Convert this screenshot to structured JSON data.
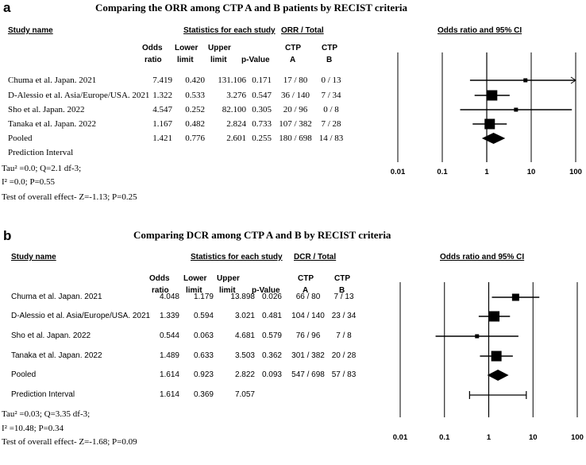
{
  "chart_data": [
    {
      "type": "forest",
      "panel": "a",
      "title": "Comparing the ORR among CTP A and B patients by RECIST criteria",
      "headers": {
        "study": "Study name",
        "stats_group": "Statistics for each study",
        "group_total": "ORR / Total",
        "plot_title": "Odds ratio and 95% CI",
        "odds": [
          "Odds",
          "ratio"
        ],
        "lower": [
          "Lower",
          "limit"
        ],
        "upper": [
          "Upper",
          "limit"
        ],
        "pvalue": "p-Value",
        "ctpa": [
          "CTP",
          "A"
        ],
        "ctpb": [
          "CTP",
          "B"
        ]
      },
      "x_scale": "log",
      "xlim": [
        0.01,
        100
      ],
      "x_ticks": [
        "0.01",
        "0.1",
        "1",
        "10",
        "100"
      ],
      "rows": [
        {
          "study": "Chuma et al. Japan. 2021",
          "or": 7.419,
          "lower": 0.42,
          "upper": 131.106,
          "p": 0.171,
          "or_t": "7.419",
          "lower_t": "0.420",
          "upper_t": "131.106",
          "p_t": "0.171",
          "a": "17 / 80",
          "b": "0 / 13",
          "weight": 1
        },
        {
          "study": "D-Alessio et al. Asia/Europe/USA. 2021",
          "or": 1.322,
          "lower": 0.533,
          "upper": 3.276,
          "p": 0.547,
          "or_t": "1.322",
          "lower_t": "0.533",
          "upper_t": "3.276",
          "p_t": "0.547",
          "a": "36 / 140",
          "b": "7 / 34",
          "weight": 5
        },
        {
          "study": "Sho et al. Japan. 2022",
          "or": 4.547,
          "lower": 0.252,
          "upper": 82.1,
          "p": 0.305,
          "or_t": "4.547",
          "lower_t": "0.252",
          "upper_t": "82.100",
          "p_t": "0.305",
          "a": "20 / 96",
          "b": "0 / 8",
          "weight": 1
        },
        {
          "study": "Tanaka et al. Japan. 2022",
          "or": 1.167,
          "lower": 0.482,
          "upper": 2.824,
          "p": 0.733,
          "or_t": "1.167",
          "lower_t": "0.482",
          "upper_t": "2.824",
          "p_t": "0.733",
          "a": "107 / 382",
          "b": "7 / 28",
          "weight": 5
        },
        {
          "study": "Pooled",
          "or": 1.421,
          "lower": 0.776,
          "upper": 2.601,
          "p": 0.255,
          "or_t": "1.421",
          "lower_t": "0.776",
          "upper_t": "2.601",
          "p_t": "0.255",
          "a": "180 / 698",
          "b": "14 / 83",
          "pooled": true
        },
        {
          "study": "Prediction Interval",
          "interval": false
        }
      ],
      "stats_lines": [
        "Tau² =0.0; Q=2.1 df-3;",
        "I² =0.0; P=0.55",
        "Test of overall effect- Z=-1.13; P=0.25"
      ]
    },
    {
      "type": "forest",
      "panel": "b",
      "title": "Comparing DCR among CTP A and B by RECIST criteria",
      "headers": {
        "study": "Study name",
        "stats_group": "Statistics for each study",
        "group_total": "DCR / Total",
        "plot_title": "Odds ratio and 95% CI",
        "odds": [
          "Odds",
          "ratio"
        ],
        "lower": [
          "Lower",
          "limit"
        ],
        "upper": [
          "Upper",
          "limit"
        ],
        "pvalue": "p-Value",
        "ctpa": [
          "CTP",
          "A"
        ],
        "ctpb": [
          "CTP",
          "B"
        ]
      },
      "x_scale": "log",
      "xlim": [
        0.01,
        100
      ],
      "x_ticks": [
        "0.01",
        "0.1",
        "1",
        "10",
        "100"
      ],
      "rows": [
        {
          "study": "Chuma et al. Japan. 2021",
          "or": 4.048,
          "lower": 1.179,
          "upper": 13.898,
          "p": 0.026,
          "or_t": "4.048",
          "lower_t": "1.179",
          "upper_t": "13.898",
          "p_t": "0.026",
          "a": "66 / 80",
          "b": "7 / 13",
          "weight": 3
        },
        {
          "study": "D-Alessio et al. Asia/Europe/USA. 2021",
          "or": 1.339,
          "lower": 0.594,
          "upper": 3.021,
          "p": 0.481,
          "or_t": "1.339",
          "lower_t": "0.594",
          "upper_t": "3.021",
          "p_t": "0.481",
          "a": "104 / 140",
          "b": "23 / 34",
          "weight": 5
        },
        {
          "study": "Sho et al. Japan. 2022",
          "or": 0.544,
          "lower": 0.063,
          "upper": 4.681,
          "p": 0.579,
          "or_t": "0.544",
          "lower_t": "0.063",
          "upper_t": "4.681",
          "p_t": "0.579",
          "a": "76 / 96",
          "b": "7 / 8",
          "weight": 1
        },
        {
          "study": "Tanaka et al. Japan. 2022",
          "or": 1.489,
          "lower": 0.633,
          "upper": 3.503,
          "p": 0.362,
          "or_t": "1.489",
          "lower_t": "0.633",
          "upper_t": "3.503",
          "p_t": "0.362",
          "a": "301 / 382",
          "b": "20 / 28",
          "weight": 5
        },
        {
          "study": "Pooled",
          "or": 1.614,
          "lower": 0.923,
          "upper": 2.822,
          "p": 0.093,
          "or_t": "1.614",
          "lower_t": "0.923",
          "upper_t": "2.822",
          "p_t": "0.093",
          "a": "547 / 698",
          "b": "57 / 83",
          "pooled": true
        },
        {
          "study": "Prediction Interval",
          "or": 1.614,
          "lower": 0.369,
          "upper": 7.057,
          "or_t": "1.614",
          "lower_t": "0.369",
          "upper_t": "7.057",
          "interval": true
        }
      ],
      "stats_lines": [
        "Tau² =0.03; Q=3.35 df-3;",
        "I² =10.48; P=0.34",
        "Test of overall effect- Z=-1.68; P=0.09"
      ]
    }
  ]
}
